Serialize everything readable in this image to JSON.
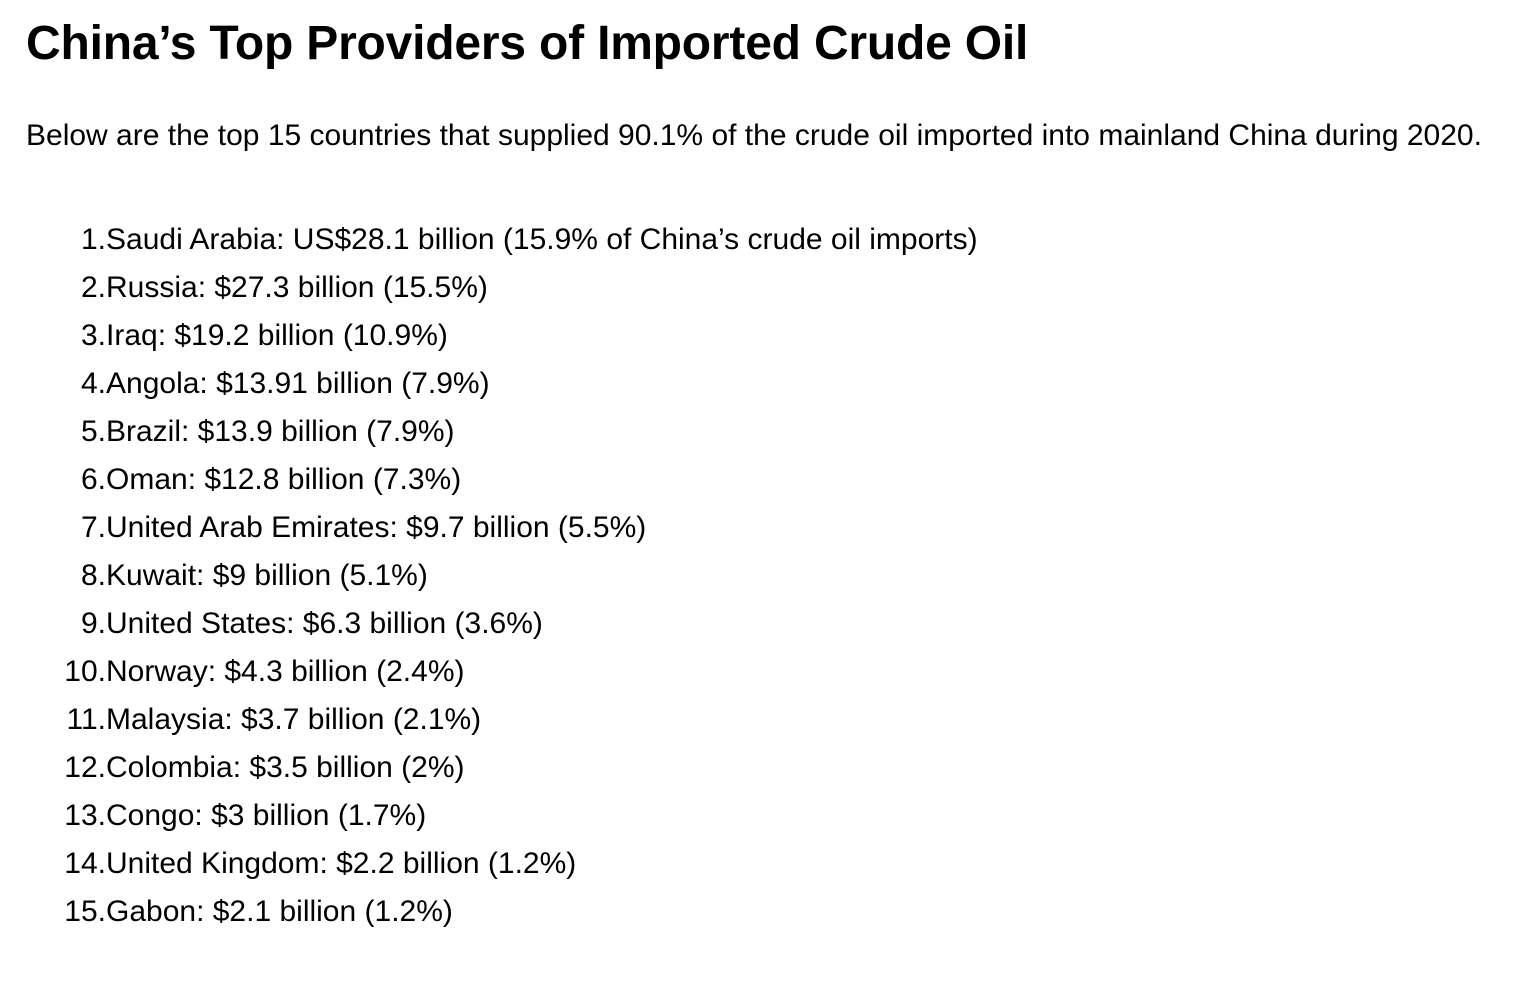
{
  "title": "China’s Top Providers of Imported Crude Oil",
  "intro": "Below are the top 15 countries that supplied 90.1% of the crude oil imported into mainland China during 2020.",
  "items": [
    {
      "num": "1.",
      "text": " Saudi Arabia: US$28.1 billion (15.9% of China’s crude oil imports)"
    },
    {
      "num": "2.",
      "text": " Russia: $27.3 billion (15.5%)"
    },
    {
      "num": "3.",
      "text": " Iraq: $19.2 billion (10.9%)"
    },
    {
      "num": "4.",
      "text": " Angola: $13.91 billion (7.9%)"
    },
    {
      "num": "5.",
      "text": " Brazil: $13.9 billion (7.9%)"
    },
    {
      "num": "6.",
      "text": " Oman: $12.8 billion (7.3%)"
    },
    {
      "num": "7.",
      "text": " United Arab Emirates: $9.7 billion (5.5%)"
    },
    {
      "num": "8.",
      "text": " Kuwait: $9 billion (5.1%)"
    },
    {
      "num": "9.",
      "text": " United States: $6.3 billion (3.6%)"
    },
    {
      "num": "10.",
      "text": " Norway: $4.3 billion (2.4%)"
    },
    {
      "num": "11.",
      "text": " Malaysia: $3.7 billion (2.1%)"
    },
    {
      "num": "12.",
      "text": " Colombia: $3.5 billion (2%)"
    },
    {
      "num": "13.",
      "text": " Congo: $3 billion (1.7%)"
    },
    {
      "num": "14.",
      "text": " United Kingdom: $2.2 billion (1.2%)"
    },
    {
      "num": "15.",
      "text": " Gabon: $2.1 billion (1.2%)"
    }
  ]
}
